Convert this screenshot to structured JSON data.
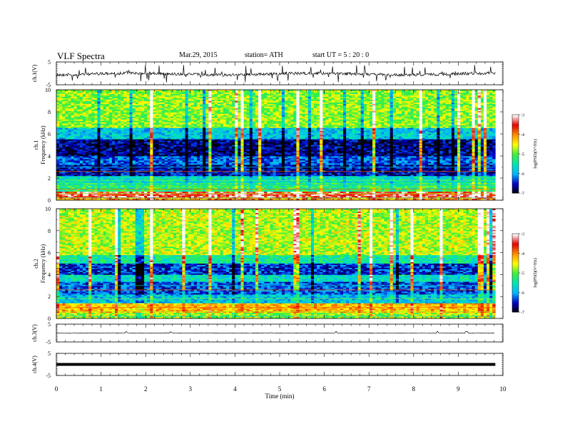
{
  "header": {
    "title": "VLF  Spectra",
    "date": "Mar.29, 2015",
    "station": "station= ATH",
    "start": "start  UT  =   5  : 20 : 0"
  },
  "chart_data": [
    {
      "type": "line",
      "ylabel": "ch.1(V)",
      "ylim": [
        -5,
        5
      ],
      "yticks": [
        "5",
        "-5"
      ],
      "note": "noisy waveform, baseline near -0.3 V with frequent spikes",
      "baseline": -0.3
    },
    {
      "type": "heatmap",
      "ylabel": "ch.1\nFrequency  (kHz)",
      "ylim": [
        0,
        10
      ],
      "yticks": [
        "0",
        "2",
        "4",
        "6",
        "8",
        "10"
      ],
      "colorbar": {
        "label": "log(PSD)(V²/Hz)",
        "range": [
          -7,
          -3
        ],
        "ticks": [
          "-3",
          "-4",
          "-5",
          "-6",
          "-7"
        ],
        "colors": [
          "#000000",
          "#0000c8",
          "#00b4ff",
          "#00e6b4",
          "#3cf03c",
          "#ffff00",
          "#ff8c00",
          "#e60000",
          "#ffffff"
        ]
      },
      "bands": [
        {
          "f": [
            0.0,
            0.3
          ],
          "level": 0.75
        },
        {
          "f": [
            0.3,
            0.8
          ],
          "level": 0.9
        },
        {
          "f": [
            0.8,
            1.5
          ],
          "level": 0.45
        },
        {
          "f": [
            1.5,
            2.2
          ],
          "level": 0.35
        },
        {
          "f": [
            2.2,
            3.2
          ],
          "level": 0.12
        },
        {
          "f": [
            3.2,
            4.0
          ],
          "level": 0.2
        },
        {
          "f": [
            4.0,
            5.5
          ],
          "level": 0.08
        },
        {
          "f": [
            5.5,
            6.5
          ],
          "level": 0.3
        },
        {
          "f": [
            6.5,
            10.0
          ],
          "level": 0.55
        }
      ]
    },
    {
      "type": "heatmap",
      "ylabel": "ch.2\nFrequency  (kHz)",
      "ylim": [
        0,
        10
      ],
      "yticks": [
        "0",
        "2",
        "4",
        "6",
        "8",
        "10"
      ],
      "colorbar": {
        "label": "log(PSD)(V²/Hz)",
        "range": [
          -7,
          -3
        ],
        "ticks": [
          "-3",
          "-4",
          "-5",
          "-6",
          "-7"
        ],
        "colors": [
          "#000000",
          "#0000c8",
          "#00b4ff",
          "#00e6b4",
          "#3cf03c",
          "#ffff00",
          "#ff8c00",
          "#e60000",
          "#ffffff"
        ]
      },
      "bands": [
        {
          "f": [
            0.0,
            0.5
          ],
          "level": 0.55
        },
        {
          "f": [
            0.5,
            1.4
          ],
          "level": 0.7
        },
        {
          "f": [
            1.4,
            2.2
          ],
          "level": 0.3
        },
        {
          "f": [
            2.2,
            3.3
          ],
          "level": 0.18
        },
        {
          "f": [
            3.3,
            4.0
          ],
          "level": 0.35
        },
        {
          "f": [
            4.0,
            5.0
          ],
          "level": 0.15
        },
        {
          "f": [
            5.0,
            5.8
          ],
          "level": 0.4
        },
        {
          "f": [
            5.8,
            10.0
          ],
          "level": 0.58
        }
      ]
    },
    {
      "type": "line",
      "ylabel": "ch.3(V)",
      "ylim": [
        -5,
        5
      ],
      "yticks": [
        "5",
        "-5"
      ],
      "baseline": 0
    },
    {
      "type": "line",
      "ylabel": "ch.4(V)",
      "ylim": [
        -5,
        5
      ],
      "yticks": [
        "5",
        "-5"
      ],
      "baseline": 0
    }
  ],
  "xaxis": {
    "label": "Time  (min)",
    "xlim": [
      0,
      10
    ],
    "ticks": [
      "0",
      "1",
      "2",
      "3",
      "4",
      "5",
      "6",
      "7",
      "8",
      "9",
      "10"
    ],
    "data_end": 9.83
  }
}
